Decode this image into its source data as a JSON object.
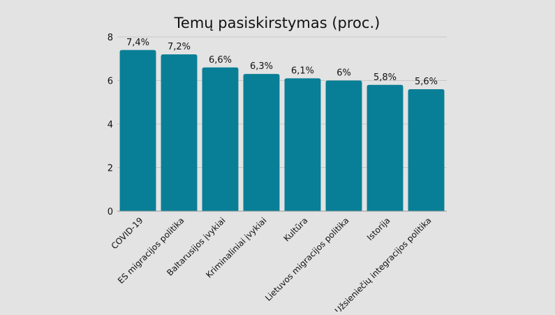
{
  "colors": {
    "background": "#e3e3e3",
    "bar": "#087f96",
    "gridline": "#c7c7c7",
    "axis": "#9a9a9a",
    "text": "#111111"
  },
  "chart_data": {
    "type": "bar",
    "title": "Temų pasiskirstymas (proc.)",
    "xlabel": "",
    "ylabel": "",
    "categories": [
      "COVID-19",
      "ES migracijos politika",
      "Baltarusijos įvykiai",
      "Kriminaliniai įvykiai",
      "Kultūra",
      "Lietuvos migracijos politika",
      "Istorija",
      "Užsieniečių integracijos politika"
    ],
    "values": [
      7.4,
      7.2,
      6.6,
      6.3,
      6.1,
      6.0,
      5.8,
      5.6
    ],
    "data_labels": [
      "7,4%",
      "7,2%",
      "6,6%",
      "6,3%",
      "6,1%",
      "6%",
      "5,8%",
      "5,6%"
    ],
    "y_ticks": [
      "0",
      "2",
      "4",
      "6",
      "8"
    ],
    "ylim": [
      0,
      8
    ],
    "grid": true,
    "legend": "none"
  }
}
